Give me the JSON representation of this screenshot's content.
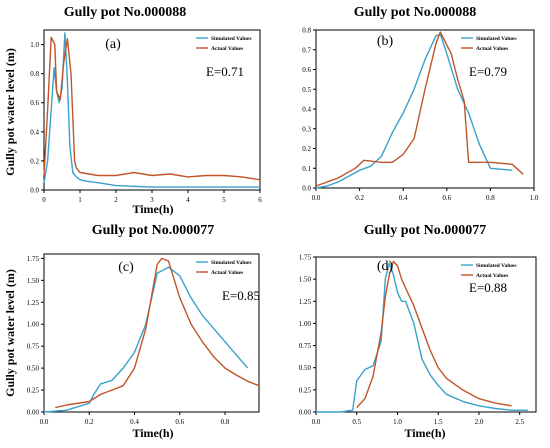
{
  "colors": {
    "simulated": "#3aa1c9",
    "actual": "#c0552a",
    "axis": "#000000"
  },
  "chart_data": [
    {
      "type": "line",
      "title": "Gully pot No.000088",
      "panel_label": "(a)",
      "annotation": "E=0.71",
      "xlabel": "Time(h)",
      "ylabel": "Gully pot water level (m)",
      "xlim": [
        0,
        6
      ],
      "ylim": [
        0,
        1.1
      ],
      "xticks": [
        "0",
        "1",
        "2",
        "3",
        "4",
        "5",
        "6"
      ],
      "yticks": [
        "0.0",
        "0.2",
        "0.4",
        "0.6",
        "0.8",
        "1.0"
      ],
      "legend_position": "top-right",
      "grid": false,
      "series": [
        {
          "name": "Simulated Values",
          "color_key": "simulated",
          "x": [
            0,
            0.1,
            0.2,
            0.28,
            0.35,
            0.42,
            0.5,
            0.58,
            0.65,
            0.72,
            0.8,
            0.9,
            1.0,
            1.2,
            1.5,
            2.0,
            3.0,
            4.0,
            5.0,
            6.0
          ],
          "y": [
            0.05,
            0.2,
            0.55,
            0.84,
            0.68,
            0.6,
            0.7,
            1.08,
            0.75,
            0.3,
            0.12,
            0.09,
            0.07,
            0.06,
            0.05,
            0.03,
            0.02,
            0.02,
            0.02,
            0.02
          ]
        },
        {
          "name": "Actual Values",
          "color_key": "actual",
          "x": [
            0.0,
            0.1,
            0.2,
            0.3,
            0.35,
            0.45,
            0.55,
            0.65,
            0.75,
            0.85,
            0.9,
            1.0,
            1.5,
            2.0,
            2.5,
            3.0,
            3.5,
            4.0,
            4.5,
            5.0,
            5.5,
            6.0
          ],
          "y": [
            0.1,
            0.55,
            1.05,
            1.0,
            0.68,
            0.62,
            0.88,
            1.04,
            0.8,
            0.2,
            0.15,
            0.12,
            0.1,
            0.1,
            0.12,
            0.1,
            0.11,
            0.09,
            0.1,
            0.1,
            0.09,
            0.07
          ]
        }
      ]
    },
    {
      "type": "line",
      "title": "Gully pot No.000088",
      "panel_label": "(b)",
      "annotation": "E=0.79",
      "xlabel": "",
      "ylabel": "",
      "xlim": [
        0,
        1.0
      ],
      "ylim": [
        0,
        0.8
      ],
      "xticks": [
        "0.0",
        "0.2",
        "0.4",
        "0.6",
        "0.8",
        "1.0"
      ],
      "yticks": [
        "0.0",
        "0.1",
        "0.2",
        "0.3",
        "0.4",
        "0.5",
        "0.6",
        "0.7",
        "0.8"
      ],
      "legend_position": "top-right",
      "grid": false,
      "series": [
        {
          "name": "Simulated Values",
          "color_key": "simulated",
          "x": [
            0.0,
            0.05,
            0.1,
            0.15,
            0.2,
            0.25,
            0.3,
            0.35,
            0.4,
            0.45,
            0.5,
            0.55,
            0.57,
            0.6,
            0.65,
            0.7,
            0.75,
            0.8,
            0.9
          ],
          "y": [
            0.0,
            0.01,
            0.03,
            0.06,
            0.09,
            0.11,
            0.16,
            0.28,
            0.38,
            0.5,
            0.65,
            0.77,
            0.78,
            0.68,
            0.5,
            0.38,
            0.22,
            0.1,
            0.09
          ]
        },
        {
          "name": "Actual Values",
          "color_key": "actual",
          "x": [
            0.0,
            0.1,
            0.18,
            0.22,
            0.3,
            0.35,
            0.4,
            0.45,
            0.5,
            0.55,
            0.57,
            0.62,
            0.65,
            0.68,
            0.7,
            0.72,
            0.8,
            0.9,
            0.95
          ],
          "y": [
            0.01,
            0.05,
            0.1,
            0.14,
            0.13,
            0.13,
            0.17,
            0.25,
            0.5,
            0.73,
            0.79,
            0.68,
            0.55,
            0.44,
            0.13,
            0.13,
            0.13,
            0.12,
            0.07
          ]
        }
      ]
    },
    {
      "type": "line",
      "title": "Gully pot No.000077",
      "panel_label": "(c)",
      "annotation": "E=0.85",
      "xlabel": "Time(h)",
      "ylabel": "Gully pot water level (m)",
      "xlim": [
        0,
        0.95
      ],
      "ylim": [
        0,
        1.8
      ],
      "xticks": [
        "0.0",
        "0.2",
        "0.4",
        "0.6",
        "0.8"
      ],
      "yticks": [
        "0.00",
        "0.25",
        "0.50",
        "0.75",
        "1.00",
        "1.25",
        "1.50",
        "1.75"
      ],
      "legend_position": "top-right",
      "grid": false,
      "series": [
        {
          "name": "Simulated Values",
          "color_key": "simulated",
          "x": [
            0.0,
            0.1,
            0.2,
            0.22,
            0.25,
            0.3,
            0.35,
            0.4,
            0.45,
            0.5,
            0.55,
            0.6,
            0.65,
            0.7,
            0.75,
            0.8,
            0.85,
            0.9
          ],
          "y": [
            0.0,
            0.02,
            0.1,
            0.2,
            0.32,
            0.36,
            0.5,
            0.68,
            1.0,
            1.58,
            1.65,
            1.55,
            1.3,
            1.1,
            0.95,
            0.8,
            0.65,
            0.5
          ]
        },
        {
          "name": "Actual Values",
          "color_key": "actual",
          "x": [
            0.05,
            0.1,
            0.2,
            0.25,
            0.3,
            0.35,
            0.4,
            0.45,
            0.5,
            0.52,
            0.55,
            0.6,
            0.65,
            0.7,
            0.75,
            0.8,
            0.85,
            0.9,
            0.95
          ],
          "y": [
            0.05,
            0.08,
            0.12,
            0.2,
            0.25,
            0.3,
            0.5,
            0.95,
            1.68,
            1.75,
            1.72,
            1.3,
            1.0,
            0.8,
            0.63,
            0.5,
            0.42,
            0.35,
            0.3
          ]
        }
      ]
    },
    {
      "type": "line",
      "title": "Gully pot No.000077",
      "panel_label": "(d)",
      "annotation": "E=0.88",
      "xlabel": "Time(h)",
      "ylabel": "",
      "xlim": [
        0,
        2.7
      ],
      "ylim": [
        0,
        1.75
      ],
      "xticks": [
        "0.0",
        "0.5",
        "1.0",
        "1.5",
        "2.0",
        "2.5"
      ],
      "yticks": [
        "0.00",
        "0.25",
        "0.50",
        "0.75",
        "1.00",
        "1.25",
        "1.50",
        "1.75"
      ],
      "legend_position": "top-right",
      "grid": false,
      "series": [
        {
          "name": "Simulated Values",
          "color_key": "simulated",
          "x": [
            0.0,
            0.3,
            0.45,
            0.5,
            0.6,
            0.7,
            0.8,
            0.85,
            0.9,
            0.95,
            1.0,
            1.05,
            1.1,
            1.2,
            1.3,
            1.4,
            1.5,
            1.6,
            1.8,
            2.0,
            2.2,
            2.4,
            2.6
          ],
          "y": [
            0.0,
            0.0,
            0.02,
            0.35,
            0.48,
            0.52,
            0.8,
            1.5,
            1.68,
            1.55,
            1.35,
            1.25,
            1.25,
            1.0,
            0.6,
            0.42,
            0.3,
            0.2,
            0.12,
            0.07,
            0.04,
            0.02,
            0.02
          ]
        },
        {
          "name": "Actual Values",
          "color_key": "actual",
          "x": [
            0.5,
            0.6,
            0.7,
            0.8,
            0.85,
            0.9,
            0.95,
            1.0,
            1.05,
            1.1,
            1.2,
            1.3,
            1.4,
            1.5,
            1.6,
            1.8,
            2.0,
            2.2,
            2.4
          ],
          "y": [
            0.05,
            0.15,
            0.4,
            0.9,
            1.3,
            1.55,
            1.7,
            1.65,
            1.5,
            1.4,
            1.2,
            0.95,
            0.7,
            0.5,
            0.38,
            0.25,
            0.15,
            0.1,
            0.07
          ]
        }
      ]
    }
  ]
}
